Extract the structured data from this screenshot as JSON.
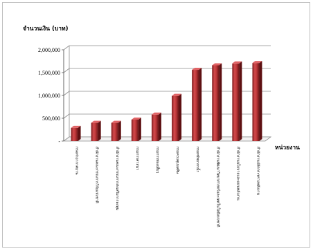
{
  "chart_data": {
    "type": "bar",
    "ylabel": "จำนวนเงิน (บาท)",
    "xlabel": "หน่วยงาน",
    "ylim": [
      0,
      2000000
    ],
    "yticks": [
      {
        "value": 0,
        "label": "-"
      },
      {
        "value": 500000,
        "label": "500,000"
      },
      {
        "value": 1000000,
        "label": "1,000,000"
      },
      {
        "value": 1500000,
        "label": "1,500,000"
      },
      {
        "value": 2000000,
        "label": "2,000,000"
      }
    ],
    "categories": [
      "กรมท่าอากาศยาน",
      "สำนักงานคณะกรรมการวิจัยแห่งชาติ",
      "สำนักงานคณะกรรมการส่งเสริมการลงทุน",
      "กรมการศาสนา",
      "กรมการท่องเที่ยว",
      "กรมควบคุมมลพิษ",
      "กรมทรัพยากรน้ำ",
      "สำนักงานพัฒนาวิทยาศาสตร์และเทคโนโลยีแห่งชาติ",
      "สำนักงานนโยบายและแผนพลังงาน",
      "สำนักงานปลัดกระทรวงพลังงาน"
    ],
    "values": [
      290000,
      400000,
      400000,
      470000,
      580000,
      990000,
      1560000,
      1660000,
      1700000,
      1710000
    ],
    "grid": true,
    "bar_color": "#c0393b"
  }
}
